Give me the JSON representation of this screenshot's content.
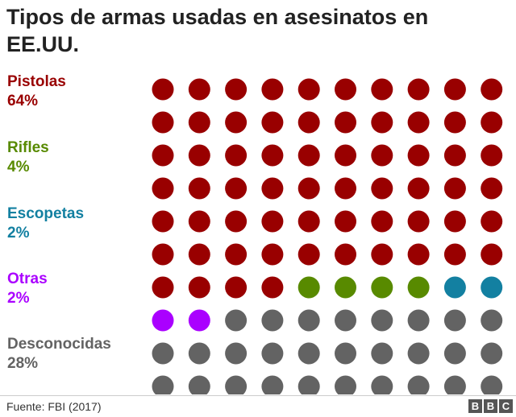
{
  "title": "Tipos de armas usadas en asesinatos en EE.UU.",
  "source": "Fuente: FBI (2017)",
  "logo": [
    "B",
    "B",
    "C"
  ],
  "chart_data": {
    "type": "waffle",
    "grid": {
      "rows": 10,
      "cols": 10
    },
    "categories": [
      {
        "name": "Pistolas",
        "percent_label": "64%",
        "value": 64,
        "color": "#990000"
      },
      {
        "name": "Rifles",
        "percent_label": "4%",
        "value": 4,
        "color": "#588a00"
      },
      {
        "name": "Escopetas",
        "percent_label": "2%",
        "value": 2,
        "color": "#1380a1"
      },
      {
        "name": "Otras",
        "percent_label": "2%",
        "value": 2,
        "color": "#aa00ff"
      },
      {
        "name": "Desconocidas",
        "percent_label": "28%",
        "value": 28,
        "color": "#636363"
      }
    ]
  }
}
